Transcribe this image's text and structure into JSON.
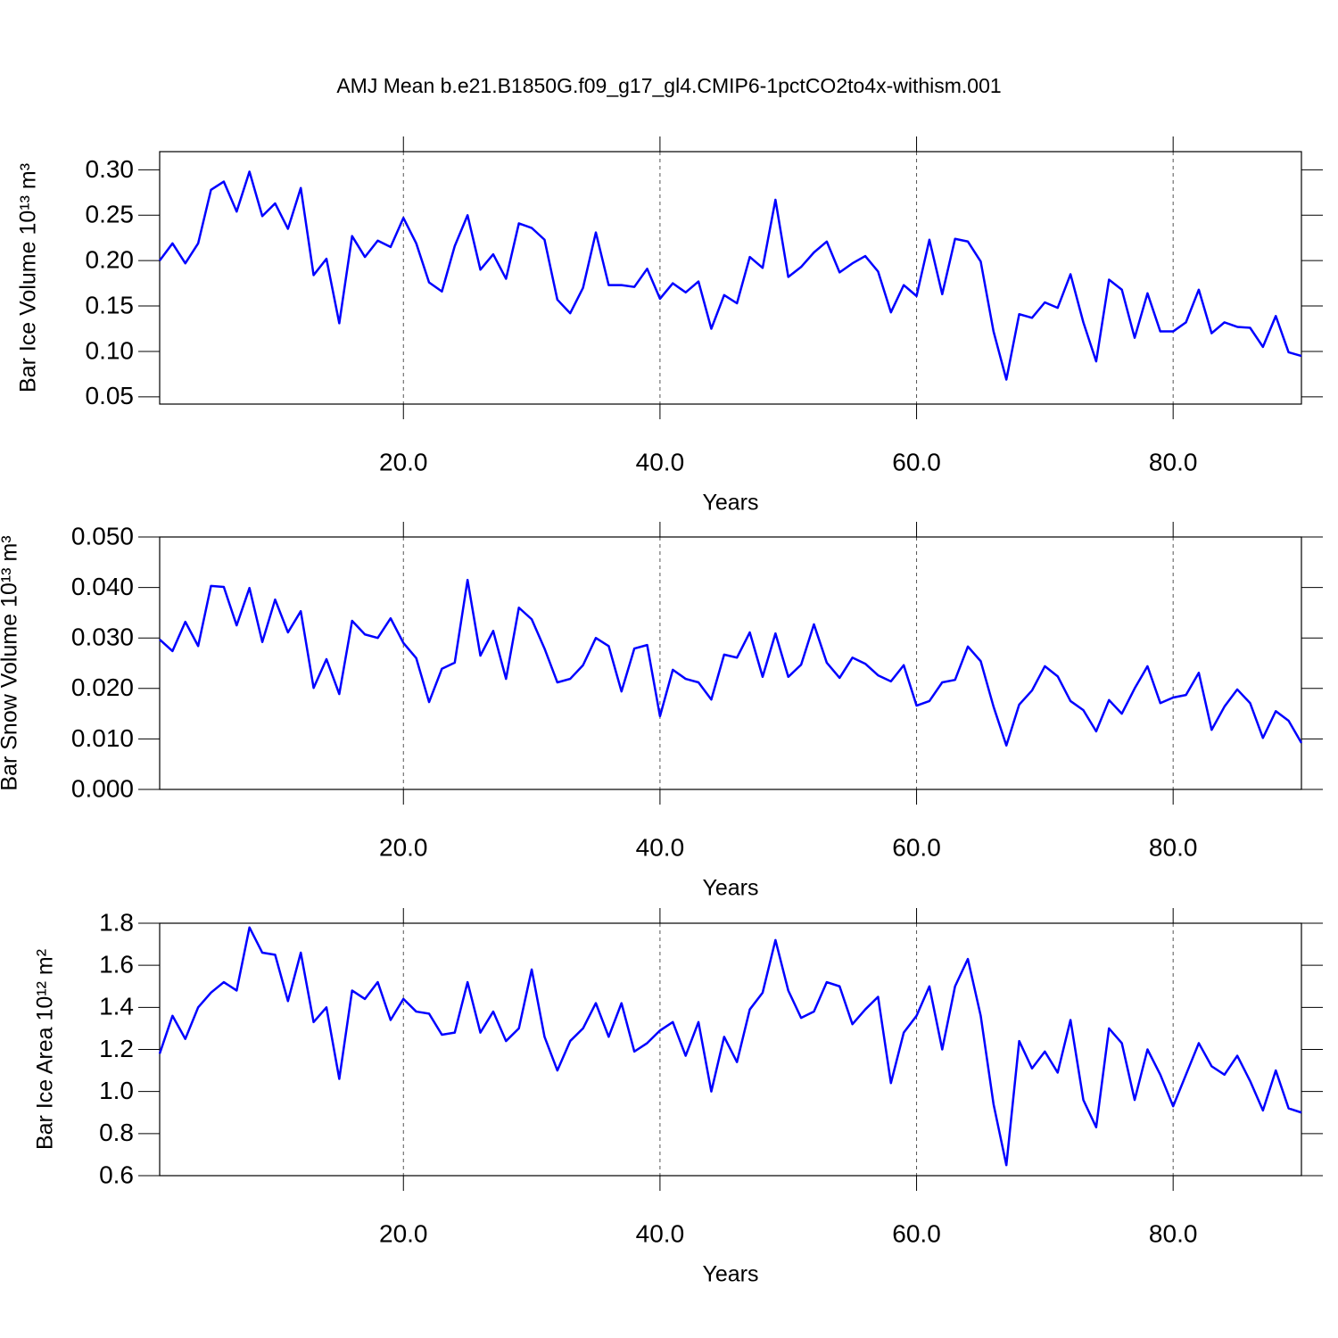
{
  "chart_data": [
    {
      "type": "line",
      "title": "AMJ Mean b.e21.B1850G.f09_g17_gl4.CMIP6-1pctCO2to4x-withism.001",
      "xlabel": "Years",
      "ylabel": "Bar Ice Volume 10¹³ m³",
      "x": [
        1,
        2,
        3,
        4,
        5,
        6,
        7,
        8,
        9,
        10,
        11,
        12,
        13,
        14,
        15,
        16,
        17,
        18,
        19,
        20,
        21,
        22,
        23,
        24,
        25,
        26,
        27,
        28,
        29,
        30,
        31,
        32,
        33,
        34,
        35,
        36,
        37,
        38,
        39,
        40,
        41,
        42,
        43,
        44,
        45,
        46,
        47,
        48,
        49,
        50,
        51,
        52,
        53,
        54,
        55,
        56,
        57,
        58,
        59,
        60,
        61,
        62,
        63,
        64,
        65,
        66,
        67,
        68,
        69,
        70,
        71,
        72,
        73,
        74,
        75,
        76,
        77,
        78,
        79,
        80,
        81,
        82,
        83,
        84,
        85,
        86,
        87,
        88,
        89,
        90
      ],
      "series": [
        {
          "color": "#0000ff",
          "values": [
            0.2,
            0.219,
            0.197,
            0.219,
            0.278,
            0.287,
            0.254,
            0.298,
            0.249,
            0.263,
            0.235,
            0.28,
            0.184,
            0.202,
            0.131,
            0.227,
            0.204,
            0.222,
            0.215,
            0.247,
            0.219,
            0.176,
            0.166,
            0.216,
            0.25,
            0.19,
            0.207,
            0.18,
            0.241,
            0.236,
            0.223,
            0.157,
            0.142,
            0.17,
            0.231,
            0.173,
            0.173,
            0.171,
            0.191,
            0.158,
            0.175,
            0.165,
            0.177,
            0.125,
            0.162,
            0.153,
            0.204,
            0.192,
            0.267,
            0.182,
            0.193,
            0.209,
            0.221,
            0.187,
            0.197,
            0.205,
            0.188,
            0.143,
            0.173,
            0.161,
            0.223,
            0.163,
            0.224,
            0.221,
            0.199,
            0.122,
            0.069,
            0.141,
            0.137,
            0.154,
            0.148,
            0.185,
            0.132,
            0.089,
            0.179,
            0.168,
            0.115,
            0.164,
            0.122,
            0.122,
            0.132,
            0.168,
            0.12,
            0.132,
            0.127,
            0.126,
            0.105,
            0.139,
            0.099,
            0.095
          ]
        }
      ],
      "xlim": [
        1,
        90
      ],
      "xticks": [
        {
          "value": 20,
          "label": "20.0"
        },
        {
          "value": 40,
          "label": "40.0"
        },
        {
          "value": 60,
          "label": "60.0"
        },
        {
          "value": 80,
          "label": "80.0"
        }
      ],
      "ylim": [
        0.042,
        0.32
      ],
      "yticks": [
        0.05,
        {
          "value": 0.1,
          "label": "0.10"
        },
        0.15,
        {
          "value": 0.2,
          "label": "0.20"
        },
        0.25,
        {
          "value": 0.3,
          "label": "0.30"
        }
      ],
      "xgrid": true
    },
    {
      "type": "line",
      "xlabel": "Years",
      "ylabel": "Bar Snow Volume 10¹³ m³",
      "x": [
        1,
        2,
        3,
        4,
        5,
        6,
        7,
        8,
        9,
        10,
        11,
        12,
        13,
        14,
        15,
        16,
        17,
        18,
        19,
        20,
        21,
        22,
        23,
        24,
        25,
        26,
        27,
        28,
        29,
        30,
        31,
        32,
        33,
        34,
        35,
        36,
        37,
        38,
        39,
        40,
        41,
        42,
        43,
        44,
        45,
        46,
        47,
        48,
        49,
        50,
        51,
        52,
        53,
        54,
        55,
        56,
        57,
        58,
        59,
        60,
        61,
        62,
        63,
        64,
        65,
        66,
        67,
        68,
        69,
        70,
        71,
        72,
        73,
        74,
        75,
        76,
        77,
        78,
        79,
        80,
        81,
        82,
        83,
        84,
        85,
        86,
        87,
        88,
        89,
        90
      ],
      "series": [
        {
          "color": "#0000ff",
          "values": [
            0.0297,
            0.0274,
            0.0332,
            0.0284,
            0.0403,
            0.0401,
            0.0325,
            0.0399,
            0.0292,
            0.0376,
            0.0311,
            0.0353,
            0.0201,
            0.0258,
            0.0189,
            0.0334,
            0.0307,
            0.03,
            0.0339,
            0.029,
            0.026,
            0.0173,
            0.0239,
            0.0251,
            0.0415,
            0.0265,
            0.0314,
            0.0219,
            0.036,
            0.0337,
            0.0279,
            0.0212,
            0.0219,
            0.0246,
            0.03,
            0.0284,
            0.0194,
            0.0279,
            0.0286,
            0.0145,
            0.0237,
            0.0219,
            0.0212,
            0.0178,
            0.0267,
            0.0261,
            0.0311,
            0.0223,
            0.0309,
            0.0223,
            0.0247,
            0.0327,
            0.0251,
            0.0221,
            0.0261,
            0.0249,
            0.0226,
            0.0214,
            0.0246,
            0.0166,
            0.0175,
            0.0212,
            0.0217,
            0.0283,
            0.0254,
            0.0164,
            0.0087,
            0.0168,
            0.0196,
            0.0244,
            0.0224,
            0.0175,
            0.0157,
            0.0115,
            0.0177,
            0.015,
            0.02,
            0.0244,
            0.0171,
            0.0182,
            0.0187,
            0.0231,
            0.0118,
            0.0164,
            0.0198,
            0.0171,
            0.0102,
            0.0155,
            0.0136,
            0.0092
          ]
        }
      ],
      "xlim": [
        1,
        90
      ],
      "xticks": [
        {
          "value": 20,
          "label": "20.0"
        },
        {
          "value": 40,
          "label": "40.0"
        },
        {
          "value": 60,
          "label": "60.0"
        },
        {
          "value": 80,
          "label": "80.0"
        }
      ],
      "ylim": [
        0,
        0.05
      ],
      "yticks": [
        {
          "value": 0,
          "label": "0.000"
        },
        {
          "value": 0.01,
          "label": "0.010"
        },
        {
          "value": 0.02,
          "label": "0.020"
        },
        {
          "value": 0.03,
          "label": "0.030"
        },
        {
          "value": 0.04,
          "label": "0.040"
        },
        {
          "value": 0.05,
          "label": "0.050"
        }
      ],
      "xgrid": true
    },
    {
      "type": "line",
      "xlabel": "Years",
      "ylabel": "Bar Ice Area 10¹² m²",
      "x": [
        1,
        2,
        3,
        4,
        5,
        6,
        7,
        8,
        9,
        10,
        11,
        12,
        13,
        14,
        15,
        16,
        17,
        18,
        19,
        20,
        21,
        22,
        23,
        24,
        25,
        26,
        27,
        28,
        29,
        30,
        31,
        32,
        33,
        34,
        35,
        36,
        37,
        38,
        39,
        40,
        41,
        42,
        43,
        44,
        45,
        46,
        47,
        48,
        49,
        50,
        51,
        52,
        53,
        54,
        55,
        56,
        57,
        58,
        59,
        60,
        61,
        62,
        63,
        64,
        65,
        66,
        67,
        68,
        69,
        70,
        71,
        72,
        73,
        74,
        75,
        76,
        77,
        78,
        79,
        80,
        81,
        82,
        83,
        84,
        85,
        86,
        87,
        88,
        89,
        90
      ],
      "series": [
        {
          "color": "#0000ff",
          "values": [
            1.18,
            1.36,
            1.25,
            1.4,
            1.47,
            1.52,
            1.48,
            1.78,
            1.66,
            1.65,
            1.43,
            1.66,
            1.33,
            1.4,
            1.06,
            1.48,
            1.44,
            1.52,
            1.34,
            1.44,
            1.38,
            1.37,
            1.27,
            1.28,
            1.52,
            1.28,
            1.38,
            1.24,
            1.3,
            1.58,
            1.26,
            1.1,
            1.24,
            1.3,
            1.42,
            1.26,
            1.42,
            1.19,
            1.23,
            1.29,
            1.33,
            1.17,
            1.33,
            1.0,
            1.26,
            1.14,
            1.39,
            1.47,
            1.72,
            1.48,
            1.35,
            1.38,
            1.52,
            1.5,
            1.32,
            1.39,
            1.45,
            1.04,
            1.28,
            1.36,
            1.5,
            1.2,
            1.5,
            1.63,
            1.36,
            0.94,
            0.65,
            1.24,
            1.11,
            1.19,
            1.09,
            1.34,
            0.96,
            0.83,
            1.3,
            1.23,
            0.96,
            1.2,
            1.08,
            0.93,
            1.08,
            1.23,
            1.12,
            1.08,
            1.17,
            1.05,
            0.91,
            1.1,
            0.92,
            0.9
          ]
        }
      ],
      "xlim": [
        1,
        90
      ],
      "xticks": [
        {
          "value": 20,
          "label": "20.0"
        },
        {
          "value": 40,
          "label": "40.0"
        },
        {
          "value": 60,
          "label": "60.0"
        },
        {
          "value": 80,
          "label": "80.0"
        }
      ],
      "ylim": [
        0.6,
        1.8
      ],
      "yticks": [
        0.6,
        0.8,
        {
          "value": 1,
          "label": "1.0"
        },
        1.2,
        1.4,
        1.6,
        1.8
      ],
      "xgrid": true
    }
  ]
}
